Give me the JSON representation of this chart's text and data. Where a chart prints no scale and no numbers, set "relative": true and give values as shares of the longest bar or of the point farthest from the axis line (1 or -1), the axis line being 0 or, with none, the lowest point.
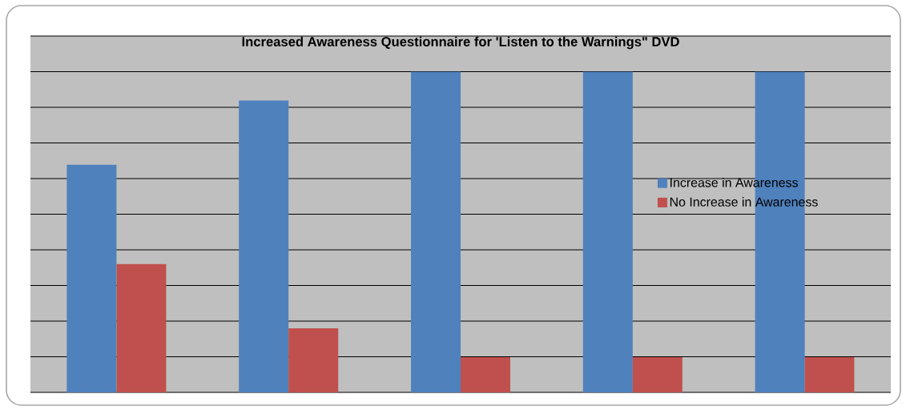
{
  "chart_data": {
    "type": "bar",
    "title": "Increased Awareness Questionnaire for 'Listen to the Warnings\" DVD",
    "categories": [
      null,
      null,
      null,
      null,
      null
    ],
    "relative": true,
    "grid": "y",
    "legend": "right",
    "series": [
      {
        "name": "Increase in Awareness",
        "color": "#4f81bd",
        "values": [
          0.71,
          0.91,
          1,
          1,
          1
        ]
      },
      {
        "name": "No Increase in Awareness",
        "color": "#c0504d",
        "values": [
          0.4,
          0.2,
          0.11,
          0.11,
          0.11
        ]
      }
    ]
  }
}
